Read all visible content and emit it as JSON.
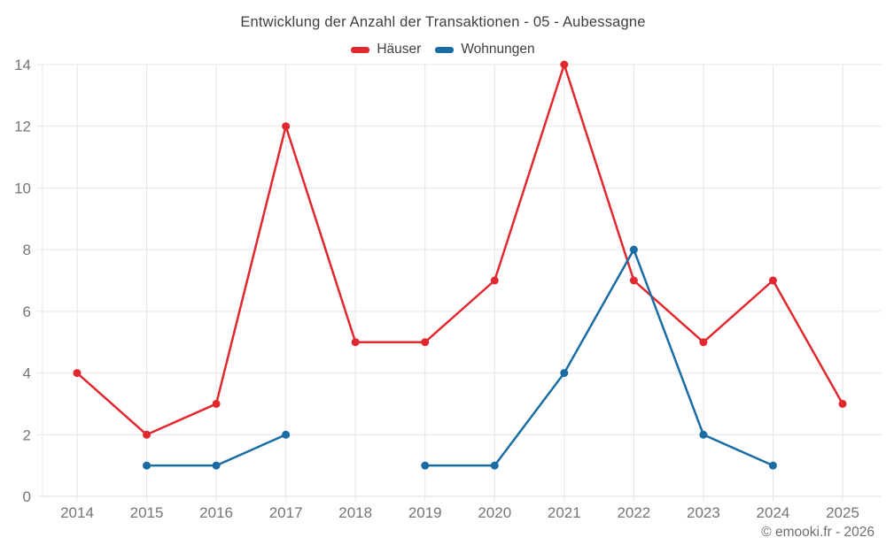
{
  "chart": {
    "title": "Entwicklung der Anzahl der Transaktionen - 05 - Aubessagne",
    "copyright": "© emooki.fr - 2026"
  },
  "chart_data": {
    "type": "line",
    "title": "Entwicklung der Anzahl der Transaktionen - 05 - Aubessagne",
    "categories": [
      "2014",
      "2015",
      "2016",
      "2017",
      "2018",
      "2019",
      "2020",
      "2021",
      "2022",
      "2023",
      "2024",
      "2025"
    ],
    "series": [
      {
        "name": "Häuser",
        "color": "#e0282e",
        "values": [
          4,
          2,
          3,
          12,
          5,
          5,
          7,
          14,
          7,
          5,
          7,
          3
        ]
      },
      {
        "name": "Wohnungen",
        "color": "#1a6ca4",
        "values": [
          null,
          1,
          1,
          2,
          null,
          1,
          1,
          4,
          8,
          2,
          1,
          null
        ]
      }
    ],
    "ylim": [
      0,
      14
    ],
    "yticks": [
      0,
      2,
      4,
      6,
      8,
      10,
      12,
      14
    ],
    "xlabel": "",
    "ylabel": "",
    "grid": true,
    "legend_position": "top",
    "gridline_color": "#e5e5e5",
    "axis_label_color": "#757575"
  }
}
